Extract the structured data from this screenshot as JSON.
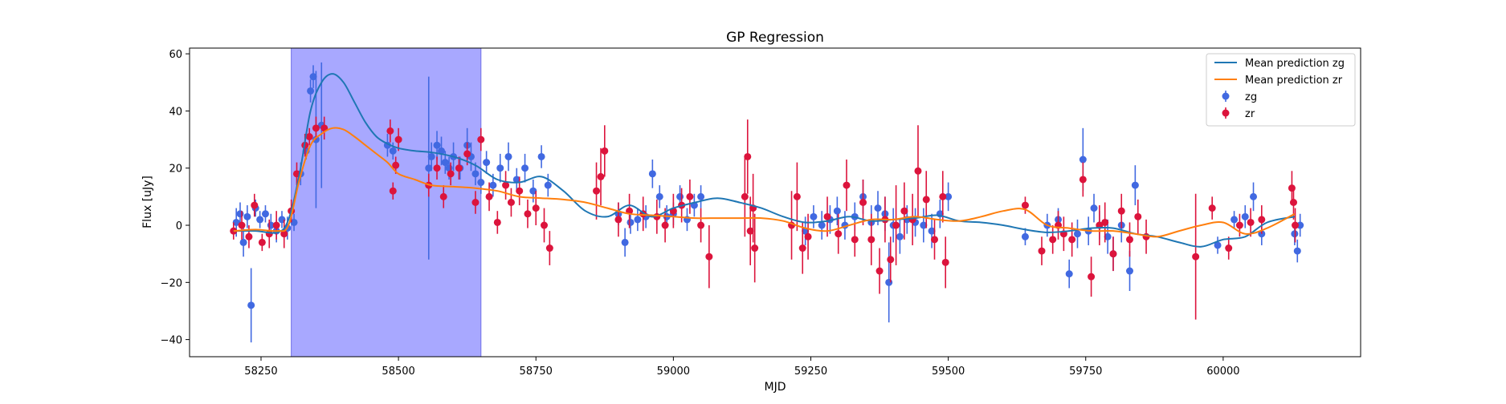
{
  "chart_data": {
    "type": "scatter",
    "title": "GP Regression",
    "xlabel": "MJD",
    "ylabel": "Flux [uJy]",
    "xlim": [
      58120,
      60250
    ],
    "ylim": [
      -46,
      62
    ],
    "xticks": [
      58250,
      58500,
      58750,
      59000,
      59250,
      59500,
      59750,
      60000
    ],
    "yticks": [
      -40,
      -20,
      0,
      20,
      40,
      60
    ],
    "grid": false,
    "legend_position": "top-right",
    "shaded_region": {
      "x0": 58305,
      "x1": 58650,
      "color": "#a8a8ff"
    },
    "lines": [
      {
        "name": "Mean prediction zg",
        "color": "#1f77b4",
        "x": [
          58200,
          58240,
          58280,
          58300,
          58320,
          58340,
          58360,
          58380,
          58400,
          58420,
          58440,
          58460,
          58480,
          58500,
          58530,
          58560,
          58600,
          58640,
          58680,
          58720,
          58760,
          58800,
          58840,
          58880,
          58920,
          58960,
          59000,
          59040,
          59080,
          59120,
          59160,
          59200,
          59240,
          59280,
          59320,
          59360,
          59400,
          59440,
          59480,
          59520,
          59560,
          59600,
          59640,
          59680,
          59720,
          59760,
          59800,
          59840,
          59880,
          59920,
          59960,
          60000,
          60040,
          60080,
          60130
        ],
        "y": [
          -2,
          -2,
          -2.5,
          2,
          18,
          40,
          50,
          53,
          50,
          43,
          36,
          31,
          28.5,
          27,
          26,
          25.5,
          24,
          21,
          16,
          15,
          17,
          12,
          5,
          3,
          7,
          3,
          6,
          8,
          9.5,
          8,
          6,
          3,
          1,
          1.5,
          3,
          1.5,
          2,
          2.5,
          3.5,
          1.5,
          1,
          0,
          -1.5,
          -2.5,
          -2,
          -1,
          -1,
          -3,
          -4,
          -6,
          -7.5,
          -5,
          -4,
          1,
          3
        ]
      },
      {
        "name": "Mean prediction zr",
        "color": "#ff7f0e",
        "x": [
          58200,
          58240,
          58280,
          58300,
          58320,
          58340,
          58360,
          58380,
          58400,
          58420,
          58440,
          58460,
          58480,
          58500,
          58530,
          58560,
          58600,
          58640,
          58680,
          58720,
          58760,
          58800,
          58840,
          58880,
          58920,
          58960,
          59000,
          59040,
          59080,
          59120,
          59160,
          59200,
          59240,
          59280,
          59320,
          59360,
          59400,
          59440,
          59480,
          59520,
          59560,
          59600,
          59640,
          59680,
          59720,
          59760,
          59800,
          59840,
          59880,
          59920,
          59960,
          60000,
          60040,
          60080,
          60130
        ],
        "y": [
          -2,
          -1.5,
          -2,
          0,
          16,
          28,
          32,
          34,
          33.5,
          31,
          28,
          25,
          22,
          18,
          16,
          14,
          13.5,
          13,
          12,
          10,
          9.5,
          9,
          8,
          6,
          4,
          3.5,
          3,
          2.5,
          2.5,
          2.5,
          2.5,
          1.5,
          -1,
          -2,
          0,
          2,
          2,
          3,
          2,
          1.5,
          3,
          5,
          5.5,
          0,
          -1,
          -2,
          -2,
          -3,
          -4,
          -2,
          0,
          1,
          -3,
          -1,
          4
        ]
      }
    ],
    "series": [
      {
        "name": "zg",
        "color": "#4169e1",
        "x": [
          58205,
          58212,
          58218,
          58225,
          58232,
          58240,
          58248,
          58258,
          58268,
          58278,
          58288,
          58298,
          58310,
          58322,
          58332,
          58340,
          58345,
          58350,
          58360,
          58480,
          58490,
          58555,
          58560,
          58570,
          58578,
          58585,
          58592,
          58600,
          58612,
          58625,
          58632,
          58640,
          58650,
          58660,
          58672,
          58685,
          58700,
          58715,
          58730,
          58745,
          58760,
          58772,
          58900,
          58912,
          58922,
          58935,
          58950,
          58962,
          58975,
          58988,
          59000,
          59012,
          59025,
          59038,
          59050,
          59240,
          59255,
          59270,
          59285,
          59298,
          59312,
          59330,
          59345,
          59360,
          59372,
          59385,
          59392,
          59400,
          59412,
          59425,
          59440,
          59455,
          59470,
          59485,
          59500,
          59640,
          59680,
          59700,
          59720,
          59735,
          59745,
          59755,
          59765,
          59775,
          59790,
          59800,
          59815,
          59830,
          59840,
          59990,
          60020,
          60040,
          60055,
          60070,
          60130,
          60135,
          60140
        ],
        "y": [
          1,
          4,
          -6,
          3,
          -28,
          6,
          2,
          4,
          0,
          -2,
          2,
          -1,
          1,
          18,
          26,
          47,
          52,
          30,
          35,
          28,
          26,
          20,
          24,
          28,
          26,
          22,
          20,
          24,
          20,
          28,
          24,
          18,
          15,
          22,
          14,
          20,
          24,
          16,
          20,
          12,
          24,
          14,
          4,
          -6,
          1,
          2,
          3,
          18,
          10,
          3,
          4,
          10,
          2,
          7,
          10,
          -2,
          3,
          0,
          2,
          5,
          0,
          3,
          10,
          1,
          6,
          4,
          -20,
          0,
          -4,
          2,
          1,
          0,
          -2,
          4,
          10,
          -4,
          0,
          2,
          -17,
          -3,
          23,
          -2,
          6,
          0,
          -4,
          -10,
          0,
          -16,
          14,
          -7,
          2,
          3,
          10,
          -3,
          -3,
          -9,
          0
        ],
        "err": [
          5,
          4,
          5,
          4,
          13,
          3,
          3,
          3,
          4,
          4,
          3,
          4,
          3,
          4,
          3,
          4,
          4,
          24,
          22,
          4,
          3,
          32,
          5,
          5,
          5,
          4,
          4,
          5,
          4,
          6,
          5,
          4,
          4,
          4,
          4,
          5,
          5,
          4,
          5,
          4,
          4,
          4,
          4,
          5,
          4,
          4,
          4,
          5,
          4,
          4,
          4,
          4,
          4,
          4,
          4,
          5,
          4,
          5,
          5,
          5,
          5,
          5,
          6,
          6,
          6,
          6,
          14,
          6,
          6,
          5,
          5,
          6,
          6,
          5,
          5,
          3,
          4,
          4,
          5,
          5,
          11,
          5,
          5,
          5,
          6,
          6,
          6,
          7,
          7,
          3,
          3,
          4,
          5,
          4,
          4,
          4,
          4
        ]
      },
      {
        "name": "zr",
        "color": "#dc143c",
        "x": [
          58200,
          58215,
          58228,
          58238,
          58252,
          58265,
          58278,
          58292,
          58305,
          58315,
          58330,
          58338,
          58350,
          58365,
          58485,
          58490,
          58495,
          58500,
          58555,
          58570,
          58582,
          58595,
          58610,
          58625,
          58640,
          58650,
          58665,
          58680,
          58695,
          58705,
          58720,
          58735,
          58750,
          58765,
          58775,
          58860,
          58868,
          58875,
          58900,
          58920,
          58945,
          58970,
          58985,
          59000,
          59015,
          59030,
          59050,
          59065,
          59130,
          59135,
          59140,
          59145,
          59148,
          59215,
          59225,
          59235,
          59245,
          59280,
          59300,
          59315,
          59330,
          59345,
          59360,
          59375,
          59385,
          59395,
          59405,
          59420,
          59435,
          59445,
          59460,
          59475,
          59490,
          59495,
          59640,
          59670,
          59690,
          59700,
          59710,
          59725,
          59745,
          59760,
          59775,
          59785,
          59800,
          59815,
          59830,
          59845,
          59860,
          59950,
          59980,
          60010,
          60030,
          60050,
          60070,
          60125,
          60128,
          60131
        ],
        "y": [
          -2,
          0,
          -4,
          7,
          -6,
          -3,
          0,
          -3,
          5,
          18,
          28,
          31,
          34,
          34,
          33,
          12,
          21,
          30,
          14,
          20,
          10,
          18,
          20,
          25,
          8,
          30,
          10,
          1,
          14,
          8,
          12,
          4,
          6,
          0,
          -8,
          12,
          17,
          26,
          2,
          5,
          4,
          3,
          0,
          5,
          7,
          10,
          0,
          -11,
          10,
          24,
          -2,
          6,
          -8,
          0,
          10,
          -8,
          -4,
          3,
          -3,
          14,
          -5,
          8,
          -5,
          -16,
          2,
          -12,
          0,
          5,
          2,
          19,
          9,
          -5,
          10,
          -13,
          7,
          -9,
          -5,
          0,
          -3,
          -5,
          16,
          -18,
          0,
          1,
          -10,
          5,
          -5,
          3,
          -4,
          -11,
          6,
          -8,
          0,
          1,
          2,
          13,
          8,
          0
        ],
        "err": [
          3,
          5,
          4,
          4,
          3,
          5,
          5,
          5,
          4,
          4,
          4,
          3,
          4,
          4,
          4,
          3,
          3,
          4,
          4,
          4,
          4,
          4,
          4,
          4,
          4,
          4,
          5,
          4,
          5,
          5,
          5,
          5,
          6,
          6,
          6,
          10,
          10,
          9,
          6,
          6,
          6,
          6,
          6,
          6,
          6,
          6,
          6,
          11,
          14,
          13,
          12,
          12,
          12,
          12,
          12,
          9,
          8,
          7,
          7,
          9,
          6,
          8,
          9,
          8,
          8,
          8,
          14,
          10,
          9,
          16,
          10,
          7,
          9,
          9,
          3,
          5,
          5,
          5,
          6,
          6,
          6,
          7,
          7,
          7,
          6,
          6,
          6,
          6,
          6,
          22,
          4,
          4,
          4,
          5,
          5,
          6,
          6,
          6
        ]
      }
    ]
  }
}
